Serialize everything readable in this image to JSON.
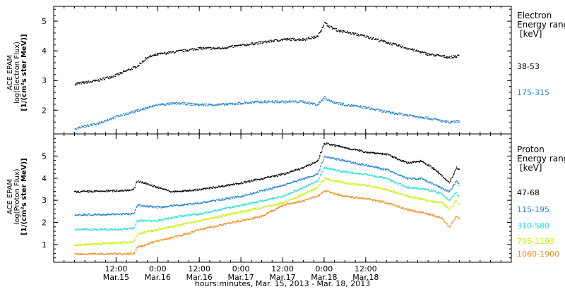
{
  "chart_data": [
    {
      "type": "line",
      "panel": "electron",
      "ylabel": [
        "ACE EPAM",
        "log(Electron Flux)",
        "[1/(cm²s ster MeV)]"
      ],
      "ylim": [
        1.2,
        5.5
      ],
      "yticks": [
        2,
        3,
        4,
        5
      ],
      "legend": {
        "title": [
          "Electron",
          "Energy range",
          "[keV]"
        ]
      },
      "series": [
        {
          "name": "38-53",
          "color": "#000000",
          "points": [
            [
              0,
              2.9
            ],
            [
              6,
              3.0
            ],
            [
              12,
              3.2
            ],
            [
              18,
              3.5
            ],
            [
              21,
              3.8
            ],
            [
              24,
              3.9
            ],
            [
              30,
              4.0
            ],
            [
              36,
              4.1
            ],
            [
              42,
              4.1
            ],
            [
              48,
              4.2
            ],
            [
              54,
              4.3
            ],
            [
              60,
              4.4
            ],
            [
              66,
              4.4
            ],
            [
              70,
              4.5
            ],
            [
              72,
              4.95
            ],
            [
              74,
              4.8
            ],
            [
              76,
              4.7
            ],
            [
              80,
              4.6
            ],
            [
              84,
              4.5
            ],
            [
              90,
              4.3
            ],
            [
              96,
              4.1
            ],
            [
              102,
              3.9
            ],
            [
              108,
              3.8
            ],
            [
              111,
              3.85
            ]
          ]
        },
        {
          "name": "175-315",
          "color": "#1a7fd4",
          "points": [
            [
              0,
              1.4
            ],
            [
              6,
              1.55
            ],
            [
              12,
              1.8
            ],
            [
              18,
              2.0
            ],
            [
              24,
              2.2
            ],
            [
              30,
              2.25
            ],
            [
              36,
              2.2
            ],
            [
              42,
              2.2
            ],
            [
              48,
              2.25
            ],
            [
              54,
              2.3
            ],
            [
              60,
              2.3
            ],
            [
              66,
              2.3
            ],
            [
              70,
              2.2
            ],
            [
              72,
              2.45
            ],
            [
              74,
              2.3
            ],
            [
              78,
              2.2
            ],
            [
              84,
              2.1
            ],
            [
              90,
              1.95
            ],
            [
              96,
              1.85
            ],
            [
              102,
              1.75
            ],
            [
              108,
              1.6
            ],
            [
              111,
              1.65
            ]
          ]
        }
      ]
    },
    {
      "type": "line",
      "panel": "proton",
      "ylabel": [
        "ACE EPAM",
        "log(Proton Flux)",
        "[1/(cm²s ster MeV)]"
      ],
      "ylim": [
        0.2,
        6.0
      ],
      "yticks": [
        1,
        2,
        3,
        4,
        5
      ],
      "legend": {
        "title": [
          "Proton",
          "Energy range",
          "[keV]"
        ]
      },
      "series": [
        {
          "name": "47-68",
          "color": "#000000",
          "points": [
            [
              0,
              3.4
            ],
            [
              12,
              3.45
            ],
            [
              17,
              3.5
            ],
            [
              18,
              3.9
            ],
            [
              24,
              3.6
            ],
            [
              28,
              3.4
            ],
            [
              36,
              3.5
            ],
            [
              48,
              3.8
            ],
            [
              60,
              4.2
            ],
            [
              66,
              4.5
            ],
            [
              70,
              4.8
            ],
            [
              72,
              5.6
            ],
            [
              78,
              5.4
            ],
            [
              84,
              5.2
            ],
            [
              90,
              5.1
            ],
            [
              96,
              4.7
            ],
            [
              100,
              4.8
            ],
            [
              104,
              4.4
            ],
            [
              108,
              3.8
            ],
            [
              110,
              4.5
            ],
            [
              111,
              4.4
            ]
          ]
        },
        {
          "name": "115-195",
          "color": "#1a7fd4",
          "points": [
            [
              0,
              2.35
            ],
            [
              12,
              2.4
            ],
            [
              17,
              2.4
            ],
            [
              18,
              2.8
            ],
            [
              24,
              2.7
            ],
            [
              30,
              2.8
            ],
            [
              36,
              2.9
            ],
            [
              48,
              3.2
            ],
            [
              60,
              3.7
            ],
            [
              66,
              4.0
            ],
            [
              70,
              4.2
            ],
            [
              72,
              5.0
            ],
            [
              78,
              4.8
            ],
            [
              84,
              4.6
            ],
            [
              90,
              4.4
            ],
            [
              96,
              4.0
            ],
            [
              100,
              4.0
            ],
            [
              104,
              3.7
            ],
            [
              108,
              3.4
            ],
            [
              110,
              3.9
            ],
            [
              111,
              3.7
            ]
          ]
        },
        {
          "name": "310-580",
          "color": "#22dfd6",
          "points": [
            [
              0,
              1.7
            ],
            [
              12,
              1.7
            ],
            [
              17,
              1.75
            ],
            [
              18,
              2.1
            ],
            [
              24,
              2.1
            ],
            [
              30,
              2.3
            ],
            [
              36,
              2.4
            ],
            [
              48,
              2.8
            ],
            [
              60,
              3.2
            ],
            [
              66,
              3.6
            ],
            [
              70,
              3.9
            ],
            [
              72,
              4.5
            ],
            [
              78,
              4.3
            ],
            [
              84,
              4.2
            ],
            [
              90,
              4.0
            ],
            [
              96,
              3.6
            ],
            [
              102,
              3.5
            ],
            [
              106,
              3.3
            ],
            [
              108,
              3.0
            ],
            [
              110,
              3.4
            ],
            [
              111,
              3.1
            ]
          ]
        },
        {
          "name": "795-1193",
          "color": "#c9f000",
          "points": [
            [
              0,
              1.0
            ],
            [
              12,
              1.1
            ],
            [
              17,
              1.15
            ],
            [
              18,
              1.5
            ],
            [
              24,
              1.7
            ],
            [
              30,
              1.9
            ],
            [
              36,
              2.1
            ],
            [
              48,
              2.5
            ],
            [
              60,
              2.9
            ],
            [
              66,
              3.3
            ],
            [
              70,
              3.6
            ],
            [
              72,
              4.0
            ],
            [
              78,
              3.8
            ],
            [
              84,
              3.7
            ],
            [
              90,
              3.5
            ],
            [
              96,
              3.2
            ],
            [
              102,
              3.0
            ],
            [
              106,
              2.9
            ],
            [
              108,
              2.6
            ],
            [
              110,
              3.0
            ],
            [
              111,
              2.8
            ]
          ]
        },
        {
          "name": "1060-1900",
          "color": "#ef8a1c",
          "points": [
            [
              0,
              0.6
            ],
            [
              12,
              0.6
            ],
            [
              17,
              0.6
            ],
            [
              18,
              0.9
            ],
            [
              24,
              1.2
            ],
            [
              30,
              1.4
            ],
            [
              36,
              1.7
            ],
            [
              48,
              2.1
            ],
            [
              54,
              2.3
            ],
            [
              60,
              2.8
            ],
            [
              66,
              3.0
            ],
            [
              70,
              3.2
            ],
            [
              72,
              3.45
            ],
            [
              78,
              3.2
            ],
            [
              84,
              3.1
            ],
            [
              90,
              2.9
            ],
            [
              96,
              2.6
            ],
            [
              102,
              2.4
            ],
            [
              106,
              2.2
            ],
            [
              108,
              1.8
            ],
            [
              110,
              2.3
            ],
            [
              111,
              2.15
            ]
          ]
        }
      ]
    }
  ],
  "x_axis": {
    "xlim": [
      -6,
      126
    ],
    "units": "hours from 00:00 Mar. 15, 2013",
    "ticks": [
      {
        "value": 12,
        "time": "12:00",
        "date": "Mar.15"
      },
      {
        "value": 24,
        "time": "0:00",
        "date": "Mar.16"
      },
      {
        "value": 36,
        "time": "12:00",
        "date": "Mar.16"
      },
      {
        "value": 48,
        "time": "0:00",
        "date": "Mar.17"
      },
      {
        "value": 60,
        "time": "12:00",
        "date": "Mar.17"
      },
      {
        "value": 72,
        "time": "0:00",
        "date": "Mar.18"
      },
      {
        "value": 84,
        "time": "12:00",
        "date": "Mar.18"
      }
    ],
    "xlabel": "hours:minutes, Mar. 15, 2013 - Mar. 18, 2013"
  }
}
